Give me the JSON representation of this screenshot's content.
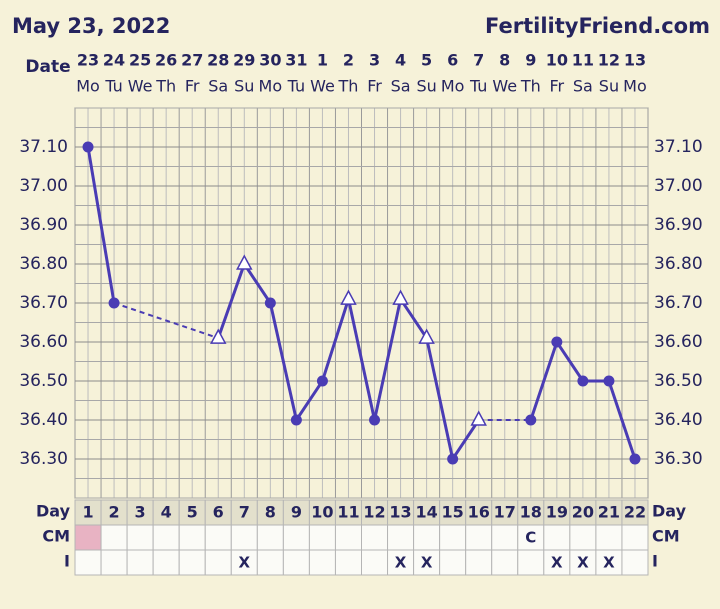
{
  "header": {
    "title": "May 23, 2022",
    "site": "FertilityFriend.com"
  },
  "chart_data": {
    "type": "line",
    "date_label": "Date",
    "dates": [
      "23",
      "24",
      "25",
      "26",
      "27",
      "28",
      "29",
      "30",
      "31",
      "1",
      "2",
      "3",
      "4",
      "5",
      "6",
      "7",
      "8",
      "9",
      "10",
      "11",
      "12",
      "13"
    ],
    "weekdays": [
      "Mo",
      "Tu",
      "We",
      "Th",
      "Fr",
      "Sa",
      "Su",
      "Mo",
      "Tu",
      "We",
      "Th",
      "Fr",
      "Sa",
      "Su",
      "Mo",
      "Tu",
      "We",
      "Th",
      "Fr",
      "Sa",
      "Su",
      "Mo"
    ],
    "day_label": "Day",
    "categories": [
      "1",
      "2",
      "3",
      "4",
      "5",
      "6",
      "7",
      "8",
      "9",
      "10",
      "11",
      "12",
      "13",
      "14",
      "15",
      "16",
      "17",
      "18",
      "19",
      "20",
      "21",
      "22"
    ],
    "values": [
      37.1,
      36.7,
      null,
      null,
      null,
      36.61,
      36.8,
      36.7,
      36.4,
      36.5,
      36.71,
      36.4,
      36.71,
      36.61,
      36.3,
      36.4,
      null,
      36.4,
      36.6,
      36.5,
      36.5,
      36.3
    ],
    "markers": [
      "circle",
      "circle",
      null,
      null,
      null,
      "triangle",
      "triangle",
      "circle",
      "circle",
      "circle",
      "triangle",
      "circle",
      "triangle",
      "triangle",
      "circle",
      "triangle",
      null,
      "circle",
      "circle",
      "circle",
      "circle",
      "circle"
    ],
    "color": "#4a3cb4",
    "ylim": [
      36.2,
      37.2
    ],
    "yticks": [
      {
        "value": 36.3,
        "label": "36.30"
      },
      {
        "value": 36.4,
        "label": "36.40"
      },
      {
        "value": 36.5,
        "label": "36.50"
      },
      {
        "value": 36.6,
        "label": "36.60"
      },
      {
        "value": 36.7,
        "label": "36.70"
      },
      {
        "value": 36.8,
        "label": "36.80"
      },
      {
        "value": 36.9,
        "label": "36.90"
      },
      {
        "value": 37.0,
        "label": "37.00"
      },
      {
        "value": 37.1,
        "label": "37.10"
      }
    ],
    "grid": true,
    "cm": {
      "label": "CM",
      "values": [
        null,
        null,
        null,
        null,
        null,
        null,
        null,
        null,
        null,
        null,
        null,
        null,
        null,
        null,
        null,
        null,
        null,
        "C",
        null,
        null,
        null,
        null
      ],
      "highlight": [
        0
      ],
      "highlight_color": "#e8b3c3"
    },
    "intercourse": {
      "label": "I",
      "values": [
        null,
        null,
        null,
        null,
        null,
        null,
        "X",
        null,
        null,
        null,
        null,
        null,
        "X",
        "X",
        null,
        null,
        null,
        null,
        "X",
        "X",
        "X",
        null
      ]
    }
  }
}
